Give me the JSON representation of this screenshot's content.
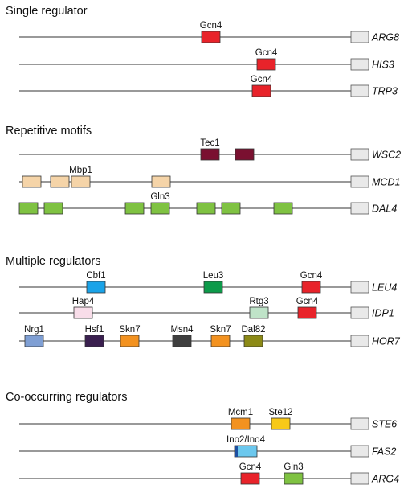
{
  "colors": {
    "Gcn4": "#e8232a",
    "Tec1": "#7a1030",
    "Mbp1": "#f5d4a8",
    "Gln3": "#7fc242",
    "Cbf1": "#1aa3e8",
    "Leu3": "#0d9a4a",
    "Hap4": "#f8dde9",
    "Rtg3": "#bfe3c8",
    "Nrg1": "#7f9fd4",
    "Hsf1": "#3a1f4f",
    "Skn7": "#f39220",
    "Msn4": "#3f3f3f",
    "Dal82": "#8c8a16",
    "Mcm1": "#f39220",
    "Ste12": "#f8c918",
    "Ino2/Ino4": "#6cc8ee",
    "Ino2/Ino4-edge": "#1e4fa0"
  },
  "sections": [
    {
      "title": "Single regulator",
      "genes": [
        {
          "name": "ARG8",
          "sites": [
            {
              "tf": "Gcn4",
              "labeled": true
            }
          ]
        },
        {
          "name": "HIS3",
          "sites": [
            {
              "tf": "Gcn4",
              "labeled": true
            }
          ]
        },
        {
          "name": "TRP3",
          "sites": [
            {
              "tf": "Gcn4",
              "labeled": true
            }
          ]
        }
      ]
    },
    {
      "title": "Repetitive motifs",
      "genes": [
        {
          "name": "WSC2",
          "sites": [
            {
              "tf": "Tec1",
              "labeled": true
            },
            {
              "tf": "Tec1",
              "labeled": false
            }
          ]
        },
        {
          "name": "MCD1",
          "sites": [
            {
              "tf": "Mbp1",
              "labeled": false
            },
            {
              "tf": "Mbp1",
              "labeled": false
            },
            {
              "tf": "Mbp1",
              "labeled": true
            },
            {
              "tf": "Mbp1",
              "labeled": false
            }
          ]
        },
        {
          "name": "DAL4",
          "sites": [
            {
              "tf": "Gln3",
              "labeled": false
            },
            {
              "tf": "Gln3",
              "labeled": false
            },
            {
              "tf": "Gln3",
              "labeled": false
            },
            {
              "tf": "Gln3",
              "labeled": true
            },
            {
              "tf": "Gln3",
              "labeled": false
            },
            {
              "tf": "Gln3",
              "labeled": false
            },
            {
              "tf": "Gln3",
              "labeled": false
            }
          ]
        }
      ]
    },
    {
      "title": "Multiple regulators",
      "genes": [
        {
          "name": "LEU4",
          "sites": [
            {
              "tf": "Cbf1",
              "labeled": true
            },
            {
              "tf": "Leu3",
              "labeled": true
            },
            {
              "tf": "Gcn4",
              "labeled": true
            }
          ]
        },
        {
          "name": "IDP1",
          "sites": [
            {
              "tf": "Hap4",
              "labeled": true
            },
            {
              "tf": "Rtg3",
              "labeled": true
            },
            {
              "tf": "Gcn4",
              "labeled": true
            }
          ]
        },
        {
          "name": "HOR7",
          "sites": [
            {
              "tf": "Nrg1",
              "labeled": true
            },
            {
              "tf": "Hsf1",
              "labeled": true
            },
            {
              "tf": "Skn7",
              "labeled": true
            },
            {
              "tf": "Msn4",
              "labeled": true
            },
            {
              "tf": "Skn7",
              "labeled": true
            },
            {
              "tf": "Dal82",
              "labeled": true
            }
          ]
        }
      ]
    },
    {
      "title": "Co-occurring regulators",
      "genes": [
        {
          "name": "STE6",
          "sites": [
            {
              "tf": "Mcm1",
              "labeled": true
            },
            {
              "tf": "Ste12",
              "labeled": true
            }
          ]
        },
        {
          "name": "FAS2",
          "sites": [
            {
              "tf": "Ino2/Ino4",
              "labeled": true
            }
          ]
        },
        {
          "name": "ARG4",
          "sites": [
            {
              "tf": "Gcn4",
              "labeled": true
            },
            {
              "tf": "Gln3",
              "labeled": true
            }
          ]
        }
      ]
    }
  ]
}
